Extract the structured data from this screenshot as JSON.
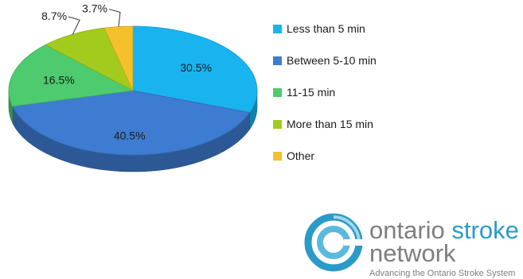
{
  "chart_data": {
    "type": "pie",
    "title": "",
    "categories": [
      "Less than 5 min",
      "Between 5-10 min",
      "11-15 min",
      "More than 15 min",
      "Other"
    ],
    "values": [
      30.5,
      40.5,
      16.5,
      8.7,
      3.7
    ],
    "labels": [
      "30.5%",
      "40.5%",
      "16.5%",
      "8.7%",
      "3.7%"
    ],
    "colors": [
      "#19b4f0",
      "#3d7cd0",
      "#4ecb6e",
      "#a2cb1e",
      "#f4c02c"
    ],
    "legend_position": "right",
    "style": "3d"
  },
  "legend": {
    "items": [
      {
        "label": "Less than 5 min",
        "color": "#19b4f0"
      },
      {
        "label": "Between 5-10 min",
        "color": "#3d7cd0"
      },
      {
        "label": "11-15 min",
        "color": "#4ecb6e"
      },
      {
        "label": "More than 15 min",
        "color": "#a2cb1e"
      },
      {
        "label": "Other",
        "color": "#f4c02c"
      }
    ]
  },
  "logo": {
    "name_part1": "ontario",
    "name_part2": "stroke",
    "name_line2": "network",
    "tagline": "Advancing the Ontario Stroke System",
    "colors": {
      "text": "#7e7e7e",
      "accent": "#2a9bc9"
    }
  }
}
